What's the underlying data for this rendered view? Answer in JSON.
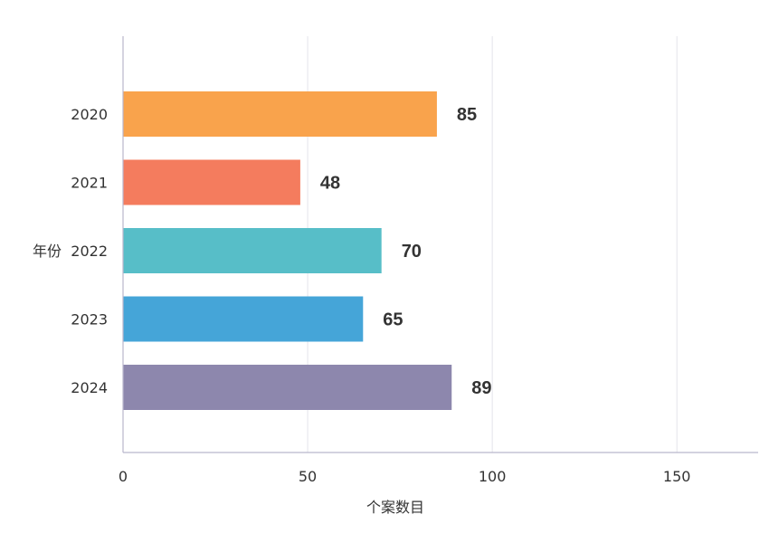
{
  "chart_data": {
    "type": "bar",
    "orientation": "horizontal",
    "categories": [
      "2020",
      "2021",
      "2022",
      "2023",
      "2024"
    ],
    "values": [
      85,
      48,
      70,
      65,
      89
    ],
    "colors": [
      "#F9A34C",
      "#F47C5E",
      "#57BEC8",
      "#45A5D8",
      "#8D87AD"
    ],
    "xlabel": "个案数目",
    "ylabel": "年份",
    "xlim": [
      0,
      172
    ],
    "xticks": [
      0,
      50,
      100,
      150
    ],
    "xtick_labels": [
      "0",
      "50",
      "100",
      "150"
    ],
    "grid": true,
    "data_labels": [
      "85",
      "48",
      "70",
      "65",
      "89"
    ]
  }
}
